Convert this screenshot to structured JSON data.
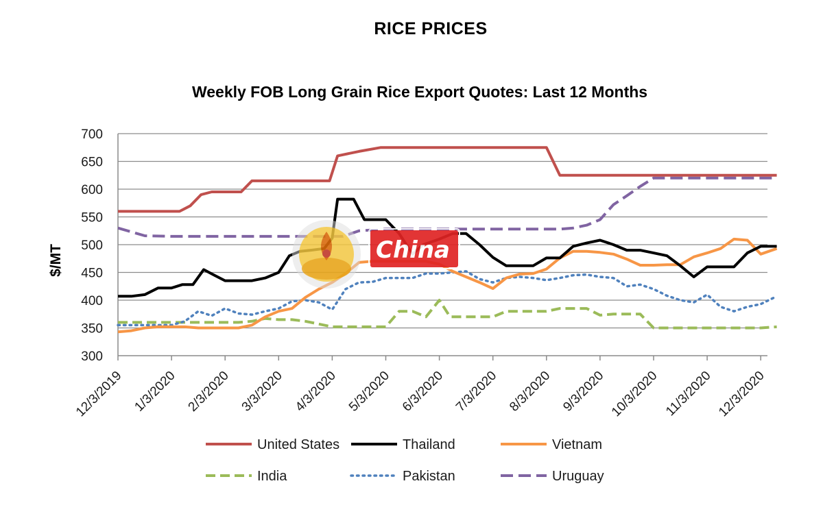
{
  "page_title": "RICE PRICES",
  "chart_data": {
    "type": "line",
    "title": "Weekly FOB Long Grain Rice Export Quotes:  Last 12 Months",
    "xlabel": "",
    "ylabel": "$/MT",
    "ylim": [
      300,
      700
    ],
    "yticks": [
      300,
      350,
      400,
      450,
      500,
      550,
      600,
      650,
      700
    ],
    "xlim": [
      0,
      12.35
    ],
    "grid": true,
    "legend_position": "bottom",
    "watermark_text": "China",
    "categories": [
      "12/3/2019",
      "1/3/2020",
      "2/3/2020",
      "3/3/2020",
      "4/3/2020",
      "5/3/2020",
      "6/3/2020",
      "7/3/2020",
      "8/3/2020",
      "9/3/2020",
      "10/3/2020",
      "11/3/2020",
      "12/3/2020"
    ],
    "series": [
      {
        "name": "United States",
        "color": "#c0504d",
        "style": "solid",
        "x": [
          0,
          1.15,
          1.35,
          1.55,
          1.75,
          2.3,
          2.5,
          3.0,
          3.5,
          3.95,
          4.1,
          4.5,
          4.9,
          5.5,
          6.0,
          6.5,
          7.0,
          7.5,
          8.0,
          8.25,
          8.5,
          9.0,
          10.0,
          11.0,
          12.0,
          12.3
        ],
        "values": [
          560,
          560,
          570,
          590,
          595,
          595,
          615,
          615,
          615,
          615,
          660,
          668,
          675,
          675,
          675,
          675,
          675,
          675,
          675,
          625,
          625,
          625,
          625,
          625,
          625,
          625
        ]
      },
      {
        "name": "Thailand",
        "color": "#000000",
        "style": "solid",
        "x": [
          0,
          0.25,
          0.5,
          0.75,
          1.0,
          1.2,
          1.4,
          1.6,
          1.8,
          2.0,
          2.2,
          2.5,
          2.75,
          3.0,
          3.2,
          3.4,
          3.6,
          3.85,
          4.0,
          4.1,
          4.4,
          4.6,
          5.0,
          5.25,
          5.5,
          5.7,
          6.0,
          6.25,
          6.5,
          6.75,
          7.0,
          7.25,
          7.5,
          7.75,
          8.0,
          8.25,
          8.5,
          8.75,
          9.0,
          9.25,
          9.5,
          9.75,
          10.0,
          10.25,
          10.5,
          10.75,
          11.0,
          11.25,
          11.5,
          11.75,
          12.0,
          12.3
        ],
        "values": [
          407,
          407,
          410,
          422,
          422,
          428,
          428,
          455,
          445,
          435,
          435,
          435,
          440,
          450,
          480,
          488,
          490,
          493,
          512,
          582,
          582,
          545,
          545,
          520,
          483,
          500,
          510,
          520,
          520,
          500,
          477,
          462,
          462,
          462,
          476,
          476,
          497,
          503,
          508,
          500,
          490,
          490,
          485,
          480,
          462,
          442,
          460,
          460,
          460,
          485,
          497,
          497
        ]
      },
      {
        "name": "Vietnam",
        "color": "#f79646",
        "style": "solid",
        "x": [
          0,
          0.25,
          0.5,
          0.75,
          1.0,
          1.25,
          1.5,
          1.75,
          2.0,
          2.25,
          2.5,
          2.75,
          3.0,
          3.25,
          3.5,
          3.75,
          4.0,
          4.25,
          4.5,
          4.75,
          5.0,
          5.25,
          5.5,
          5.75,
          6.0,
          6.25,
          6.5,
          6.75,
          7.0,
          7.25,
          7.5,
          7.75,
          8.0,
          8.25,
          8.5,
          8.75,
          9.0,
          9.25,
          9.5,
          9.75,
          10.0,
          10.25,
          10.5,
          10.75,
          11.0,
          11.25,
          11.5,
          11.75,
          12.0,
          12.3
        ],
        "values": [
          343,
          345,
          350,
          352,
          352,
          352,
          350,
          350,
          350,
          350,
          355,
          370,
          380,
          385,
          405,
          420,
          432,
          448,
          468,
          470,
          470,
          470,
          470,
          470,
          465,
          452,
          442,
          432,
          421,
          440,
          447,
          448,
          456,
          476,
          488,
          488,
          486,
          483,
          474,
          463,
          463,
          464,
          464,
          478,
          485,
          493,
          510,
          508,
          483,
          493
        ]
      },
      {
        "name": "India",
        "color": "#9bbb59",
        "style": "dashed",
        "x": [
          0,
          0.5,
          1.0,
          1.5,
          2.0,
          2.25,
          2.5,
          2.75,
          3.0,
          3.25,
          3.5,
          3.75,
          4.0,
          4.25,
          4.5,
          4.75,
          5.0,
          5.25,
          5.5,
          5.75,
          6.0,
          6.2,
          6.5,
          6.75,
          7.0,
          7.25,
          7.5,
          7.75,
          8.0,
          8.25,
          8.5,
          8.75,
          9.0,
          9.25,
          9.5,
          9.75,
          10.0,
          10.25,
          10.5,
          10.75,
          11.0,
          11.25,
          11.5,
          11.75,
          12.0,
          12.3
        ],
        "values": [
          360,
          360,
          360,
          360,
          360,
          360,
          362,
          367,
          365,
          365,
          362,
          357,
          352,
          352,
          352,
          352,
          352,
          380,
          380,
          370,
          400,
          370,
          370,
          370,
          370,
          380,
          380,
          380,
          380,
          385,
          385,
          385,
          373,
          375,
          375,
          375,
          350,
          350,
          350,
          350,
          350,
          350,
          350,
          350,
          350,
          352
        ]
      },
      {
        "name": "Pakistan",
        "color": "#4f81bd",
        "style": "dotted",
        "x": [
          0,
          0.5,
          1.0,
          1.25,
          1.5,
          1.75,
          2.0,
          2.25,
          2.5,
          2.75,
          3.0,
          3.25,
          3.5,
          3.75,
          4.0,
          4.25,
          4.5,
          4.75,
          5.0,
          5.25,
          5.5,
          5.75,
          6.0,
          6.25,
          6.5,
          6.75,
          7.0,
          7.25,
          7.5,
          7.75,
          8.0,
          8.25,
          8.5,
          8.75,
          9.0,
          9.25,
          9.5,
          9.75,
          10.0,
          10.25,
          10.5,
          10.75,
          11.0,
          11.25,
          11.5,
          11.75,
          12.0,
          12.3
        ],
        "values": [
          355,
          355,
          355,
          362,
          380,
          372,
          385,
          376,
          374,
          380,
          385,
          398,
          400,
          396,
          383,
          420,
          432,
          433,
          440,
          440,
          440,
          448,
          448,
          450,
          452,
          438,
          432,
          440,
          442,
          440,
          436,
          440,
          445,
          446,
          442,
          440,
          425,
          428,
          420,
          408,
          400,
          396,
          410,
          388,
          380,
          388,
          393,
          407
        ]
      },
      {
        "name": "Uruguay",
        "color": "#8064a2",
        "style": "longdash",
        "x": [
          0,
          0.5,
          1.0,
          1.5,
          2.0,
          2.5,
          3.0,
          3.5,
          3.8,
          4.2,
          4.5,
          5.0,
          5.5,
          6.0,
          6.5,
          7.0,
          7.5,
          8.0,
          8.25,
          8.5,
          8.75,
          9.0,
          9.25,
          9.5,
          9.75,
          10.0,
          10.5,
          11.0,
          11.5,
          12.0,
          12.3
        ],
        "values": [
          530,
          516,
          515,
          515,
          515,
          515,
          515,
          515,
          515,
          515,
          525,
          528,
          528,
          528,
          528,
          528,
          528,
          528,
          528,
          530,
          535,
          545,
          572,
          588,
          605,
          620,
          620,
          620,
          620,
          620,
          620
        ]
      }
    ]
  }
}
